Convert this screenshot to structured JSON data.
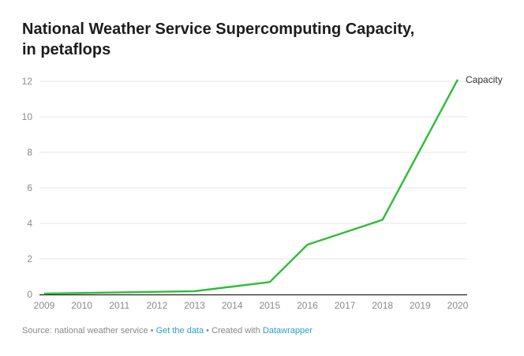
{
  "chart_data": {
    "type": "line",
    "title": "National Weather Service Supercomputing Capacity, in petaflops",
    "title_line1": "National Weather Service Supercomputing Capacity,",
    "title_line2": "in petaflops",
    "xlabel": "",
    "ylabel": "",
    "x": [
      2009,
      2010,
      2011,
      2012,
      2013,
      2014,
      2015,
      2016,
      2017,
      2018,
      2019,
      2020
    ],
    "x_ticks": [
      "2009",
      "2010",
      "2011",
      "2012",
      "2013",
      "2014",
      "2015",
      "2016",
      "2017",
      "2018",
      "2019",
      "2020"
    ],
    "y_ticks": [
      "0",
      "2",
      "4",
      "6",
      "8",
      "10",
      "12"
    ],
    "ylim": [
      0,
      12
    ],
    "xlim": [
      2009,
      2020
    ],
    "grid": true,
    "series": [
      {
        "name": "Capacity",
        "color": "#2dbd38",
        "points": [
          {
            "x": 2009,
            "y": 0.05
          },
          {
            "x": 2013,
            "y": 0.18
          },
          {
            "x": 2015,
            "y": 0.7
          },
          {
            "x": 2016,
            "y": 2.8
          },
          {
            "x": 2018,
            "y": 4.2
          },
          {
            "x": 2020,
            "y": 12.1
          }
        ]
      }
    ]
  },
  "footer": {
    "source": "Source: national weather service",
    "sep1": " • ",
    "get_data": "Get the data",
    "sep2": " • Created with ",
    "datawrapper": "Datawrapper"
  }
}
